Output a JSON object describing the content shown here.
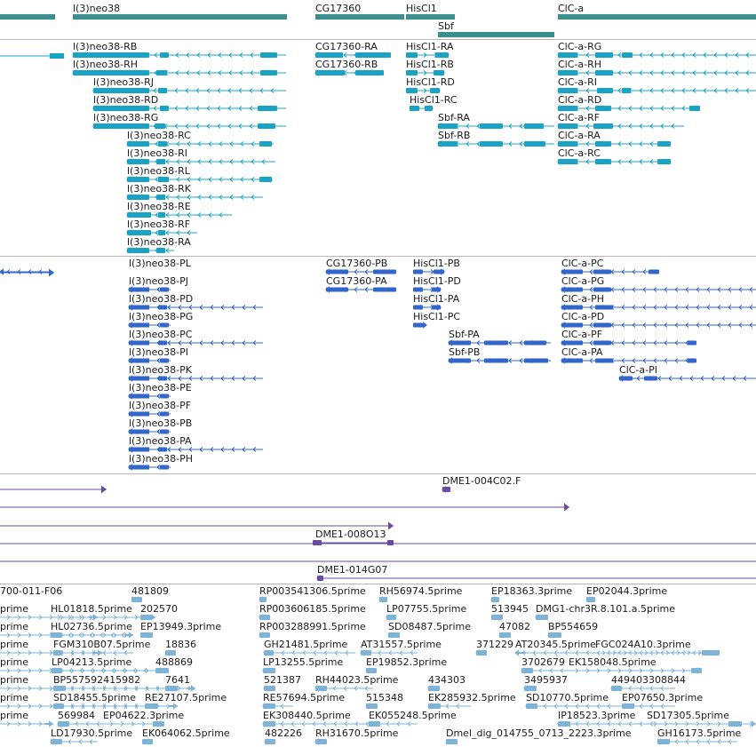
{
  "genes": {
    "color": "#3b8f8f",
    "items": [
      {
        "label": "l(3)neo38"
      },
      {
        "label": "CG17360"
      },
      {
        "label": "HisCl1"
      },
      {
        "label": "ClC-a"
      },
      {
        "label": "Sbf"
      }
    ]
  },
  "transcripts_rb": {
    "color": "#1ba3c6",
    "items": [
      {
        "label": "l(3)neo38-RB"
      },
      {
        "label": "l(3)neo38-RH"
      },
      {
        "label": "l(3)neo38-RJ"
      },
      {
        "label": "l(3)neo38-RD"
      },
      {
        "label": "l(3)neo38-RG"
      },
      {
        "label": "l(3)neo38-RC"
      },
      {
        "label": "l(3)neo38-RI"
      },
      {
        "label": "l(3)neo38-RL"
      },
      {
        "label": "l(3)neo38-RK"
      },
      {
        "label": "l(3)neo38-RE"
      },
      {
        "label": "l(3)neo38-RF"
      },
      {
        "label": "l(3)neo38-RA"
      },
      {
        "label": "CG17360-RA"
      },
      {
        "label": "CG17360-RB"
      },
      {
        "label": "HisCl1-RA"
      },
      {
        "label": "HisCl1-RB"
      },
      {
        "label": "HisCl1-RD"
      },
      {
        "label": "HisCl1-RC"
      },
      {
        "label": "Sbf-RA"
      },
      {
        "label": "Sbf-RB"
      },
      {
        "label": "ClC-a-RG"
      },
      {
        "label": "ClC-a-RH"
      },
      {
        "label": "ClC-a-RI"
      },
      {
        "label": "ClC-a-RD"
      },
      {
        "label": "ClC-a-RF"
      },
      {
        "label": "ClC-a-RA"
      },
      {
        "label": "ClC-a-RC"
      }
    ]
  },
  "proteins": {
    "color": "#3366cc",
    "items": [
      {
        "label": "l(3)neo38-PL"
      },
      {
        "label": "l(3)neo38-PJ"
      },
      {
        "label": "l(3)neo38-PD"
      },
      {
        "label": "l(3)neo38-PG"
      },
      {
        "label": "l(3)neo38-PC"
      },
      {
        "label": "l(3)neo38-PI"
      },
      {
        "label": "l(3)neo38-PK"
      },
      {
        "label": "l(3)neo38-PE"
      },
      {
        "label": "l(3)neo38-PF"
      },
      {
        "label": "l(3)neo38-PB"
      },
      {
        "label": "l(3)neo38-PA"
      },
      {
        "label": "l(3)neo38-PH"
      },
      {
        "label": "CG17360-PB"
      },
      {
        "label": "CG17360-PA"
      },
      {
        "label": "HisCl1-PB"
      },
      {
        "label": "HisCl1-PD"
      },
      {
        "label": "HisCl1-PA"
      },
      {
        "label": "HisCl1-PC"
      },
      {
        "label": "Sbf-PA"
      },
      {
        "label": "Sbf-PB"
      },
      {
        "label": "ClC-a-PC"
      },
      {
        "label": "ClC-a-PG"
      },
      {
        "label": "ClC-a-PH"
      },
      {
        "label": "ClC-a-PD"
      },
      {
        "label": "ClC-a-PF"
      },
      {
        "label": "ClC-a-PA"
      },
      {
        "label": "ClC-a-PI"
      }
    ]
  },
  "clones": {
    "color": "#6a4c9c",
    "items": [
      {
        "label": "DME1-004C02.F"
      },
      {
        "label": "DME1-008O13"
      },
      {
        "label": "DME1-014G07"
      }
    ]
  },
  "ests": {
    "color": "#7fb3d5",
    "items": [
      {
        "label": "700-011-F06"
      },
      {
        "label": "481809"
      },
      {
        "label": "RP003541306.5prime"
      },
      {
        "label": "RH56974.5prime"
      },
      {
        "label": "EP18363.3prime"
      },
      {
        "label": "EP02044.3prime"
      },
      {
        "label": "prime"
      },
      {
        "label": "HL01818.5prime"
      },
      {
        "label": "202570"
      },
      {
        "label": "RP003606185.5prime"
      },
      {
        "label": "LP07755.5prime"
      },
      {
        "label": "513945"
      },
      {
        "label": "DMG1-chr3R.8.101.a.5prime"
      },
      {
        "label": "prime"
      },
      {
        "label": "HL02736.5prime"
      },
      {
        "label": "EP13949.3prime"
      },
      {
        "label": "RP003288991.5prime"
      },
      {
        "label": "SD08487.5prime"
      },
      {
        "label": "47082"
      },
      {
        "label": "BP554659"
      },
      {
        "label": "prime"
      },
      {
        "label": "FGM310B07.5prime"
      },
      {
        "label": "18836"
      },
      {
        "label": "GH21481.5prime"
      },
      {
        "label": "AT31557.5prime"
      },
      {
        "label": "371229"
      },
      {
        "label": "AT20345.5prime"
      },
      {
        "label": "FGC024A10.3prime"
      },
      {
        "label": "prime"
      },
      {
        "label": "LP04213.5prime"
      },
      {
        "label": "488869"
      },
      {
        "label": "LP13255.5prime"
      },
      {
        "label": "EP19852.3prime"
      },
      {
        "label": "3702679"
      },
      {
        "label": "EK158048.5prime"
      },
      {
        "label": "prime"
      },
      {
        "label": "BP557592415982"
      },
      {
        "label": "7641"
      },
      {
        "label": "521387"
      },
      {
        "label": "RH44023.5prime"
      },
      {
        "label": "434303"
      },
      {
        "label": "3495937"
      },
      {
        "label": "449403308844"
      },
      {
        "label": "prime"
      },
      {
        "label": "SD18455.5prime"
      },
      {
        "label": "RE27107.5prime"
      },
      {
        "label": "RE57694.5prime"
      },
      {
        "label": "515348"
      },
      {
        "label": "EK285932.5prime"
      },
      {
        "label": "SD10770.5prime"
      },
      {
        "label": "EP07650.3prime"
      },
      {
        "label": "prime"
      },
      {
        "label": "569984"
      },
      {
        "label": "EP04622.3prime"
      },
      {
        "label": "EK308440.5prime"
      },
      {
        "label": "EK055248.5prime"
      },
      {
        "label": "IP18523.3prime"
      },
      {
        "label": "SD17305.5prime"
      },
      {
        "label": "LD17930.5prime"
      },
      {
        "label": "EK064062.5prime"
      },
      {
        "label": "482226"
      },
      {
        "label": "RH31670.5prime"
      },
      {
        "label": "Dmel_dig_014755_0713_2223.3prime"
      },
      {
        "label": "GH16173.5prime"
      }
    ]
  }
}
